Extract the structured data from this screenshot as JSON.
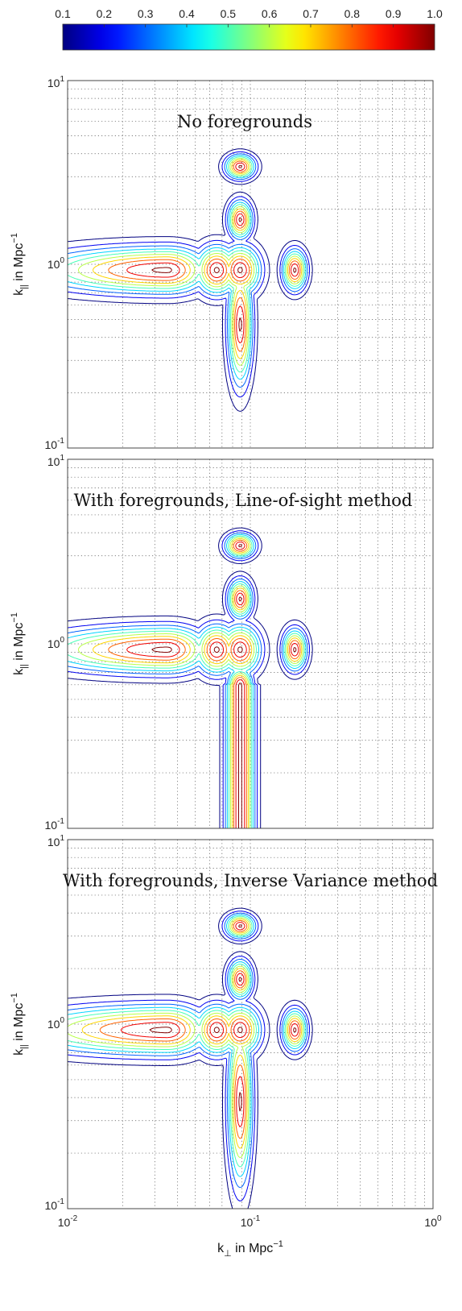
{
  "chart_data": {
    "type": "contour",
    "colorbar": {
      "ticks": [
        "0.1",
        "0.2",
        "0.3",
        "0.4",
        "0.5",
        "0.6",
        "0.7",
        "0.8",
        "0.9",
        "1.0"
      ],
      "range": [
        0.1,
        1.0
      ],
      "colormap": "jet"
    },
    "x_axis": {
      "label_main": "k",
      "label_sub": "⊥",
      "label_rest": " in Mpc",
      "label_sup": "−1",
      "scale": "log",
      "range": [
        0.01,
        1.0
      ],
      "tick_labels": [
        {
          "base": "10",
          "exp": "-2"
        },
        {
          "base": "10",
          "exp": "-1"
        },
        {
          "base": "10",
          "exp": "0"
        }
      ]
    },
    "y_axis": {
      "label_main": "k",
      "label_sub": "||",
      "label_rest": " in Mpc",
      "label_sup": "−1",
      "scale": "log",
      "range": [
        0.1,
        10.0
      ],
      "tick_labels": [
        {
          "base": "10",
          "exp": "-1"
        },
        {
          "base": "10",
          "exp": "0"
        },
        {
          "base": "10",
          "exp": "1"
        }
      ]
    },
    "grid": true,
    "contour_levels": [
      0.1,
      0.2,
      0.3,
      0.4,
      0.5,
      0.6,
      0.7,
      0.8,
      0.9,
      1.0
    ],
    "panels": [
      {
        "annotation": "No foregrounds",
        "peaks": [
          {
            "kperp": 0.035,
            "kpar": 0.93,
            "sx_left": 0.48,
            "sx_right": 0.15,
            "sy": 0.085
          },
          {
            "kperp": 0.0655,
            "kpar": 0.93,
            "sx_left": 0.08,
            "sx_right": 0.08,
            "sy": 0.09
          },
          {
            "kperp": 0.088,
            "kpar": 0.93,
            "sx_left": 0.075,
            "sx_right": 0.075,
            "sy": 0.09
          },
          {
            "kperp": 0.088,
            "kpar": 0.47,
            "sx_left": 0.045,
            "sx_right": 0.045,
            "sy": 0.22
          },
          {
            "kperp": 0.088,
            "kpar": 1.75,
            "sx_left": 0.045,
            "sx_right": 0.045,
            "sy": 0.07
          },
          {
            "kperp": 0.088,
            "kpar": 3.4,
            "sx_left": 0.055,
            "sx_right": 0.055,
            "sy": 0.045
          },
          {
            "kperp": 0.175,
            "kpar": 0.93,
            "sx_left": 0.045,
            "sx_right": 0.045,
            "sy": 0.075
          }
        ]
      },
      {
        "annotation": "With foregrounds, Line-of-sight method",
        "peaks": [
          {
            "kperp": 0.035,
            "kpar": 0.93,
            "sx_left": 0.48,
            "sx_right": 0.15,
            "sy": 0.085
          },
          {
            "kperp": 0.0655,
            "kpar": 0.93,
            "sx_left": 0.08,
            "sx_right": 0.08,
            "sy": 0.09
          },
          {
            "kperp": 0.088,
            "kpar": 0.93,
            "sx_left": 0.075,
            "sx_right": 0.075,
            "sy": 0.09
          },
          {
            "kperp": 0.088,
            "kpar": 0.6,
            "sx_left": 0.045,
            "sx_right": 0.045,
            "sy": 0.06
          },
          {
            "kperp": 0.088,
            "kpar": 1.75,
            "sx_left": 0.045,
            "sx_right": 0.045,
            "sy": 0.07
          },
          {
            "kperp": 0.088,
            "kpar": 3.4,
            "sx_left": 0.055,
            "sx_right": 0.055,
            "sy": 0.045
          },
          {
            "kperp": 0.175,
            "kpar": 0.93,
            "sx_left": 0.045,
            "sx_right": 0.045,
            "sy": 0.075
          }
        ],
        "bands": [
          {
            "kperp": 0.088,
            "kpar_max": 0.6,
            "sx": 0.052
          }
        ]
      },
      {
        "annotation": "With foregrounds, Inverse Variance method",
        "peaks": [
          {
            "kperp": 0.035,
            "kpar": 0.93,
            "sx_left": 0.55,
            "sx_right": 0.15,
            "sy": 0.09
          },
          {
            "kperp": 0.0655,
            "kpar": 0.93,
            "sx_left": 0.08,
            "sx_right": 0.08,
            "sy": 0.09
          },
          {
            "kperp": 0.088,
            "kpar": 0.93,
            "sx_left": 0.075,
            "sx_right": 0.075,
            "sy": 0.09
          },
          {
            "kperp": 0.088,
            "kpar": 0.38,
            "sx_left": 0.045,
            "sx_right": 0.045,
            "sy": 0.3
          },
          {
            "kperp": 0.088,
            "kpar": 1.75,
            "sx_left": 0.045,
            "sx_right": 0.045,
            "sy": 0.07
          },
          {
            "kperp": 0.088,
            "kpar": 3.4,
            "sx_left": 0.055,
            "sx_right": 0.055,
            "sy": 0.045
          },
          {
            "kperp": 0.175,
            "kpar": 0.93,
            "sx_left": 0.045,
            "sx_right": 0.045,
            "sy": 0.075
          }
        ]
      }
    ]
  }
}
